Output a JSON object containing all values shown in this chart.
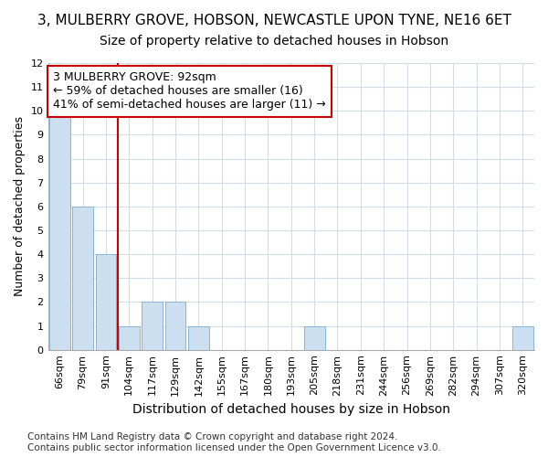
{
  "title": "3, MULBERRY GROVE, HOBSON, NEWCASTLE UPON TYNE, NE16 6ET",
  "subtitle": "Size of property relative to detached houses in Hobson",
  "xlabel": "Distribution of detached houses by size in Hobson",
  "ylabel": "Number of detached properties",
  "categories": [
    "66sqm",
    "79sqm",
    "91sqm",
    "104sqm",
    "117sqm",
    "129sqm",
    "142sqm",
    "155sqm",
    "167sqm",
    "180sqm",
    "193sqm",
    "205sqm",
    "218sqm",
    "231sqm",
    "244sqm",
    "256sqm",
    "269sqm",
    "282sqm",
    "294sqm",
    "307sqm",
    "320sqm"
  ],
  "values": [
    10,
    6,
    4,
    1,
    2,
    2,
    1,
    0,
    0,
    0,
    0,
    1,
    0,
    0,
    0,
    0,
    0,
    0,
    0,
    0,
    1
  ],
  "bar_color": "#ccdff0",
  "bar_edge_color": "#8ab4d4",
  "highlight_bar_index": 2,
  "highlight_line_color": "#cc0000",
  "ylim": [
    0,
    12
  ],
  "yticks": [
    0,
    1,
    2,
    3,
    4,
    5,
    6,
    7,
    8,
    9,
    10,
    11,
    12
  ],
  "annotation_text": "3 MULBERRY GROVE: 92sqm\n← 59% of detached houses are smaller (16)\n41% of semi-detached houses are larger (11) →",
  "annotation_box_color": "#ffffff",
  "annotation_box_edge": "#cc0000",
  "footer_line1": "Contains HM Land Registry data © Crown copyright and database right 2024.",
  "footer_line2": "Contains public sector information licensed under the Open Government Licence v3.0.",
  "background_color": "#ffffff",
  "plot_bg_color": "#ffffff",
  "grid_color": "#d0dce8",
  "title_fontsize": 11,
  "subtitle_fontsize": 10,
  "xlabel_fontsize": 10,
  "ylabel_fontsize": 9,
  "tick_fontsize": 8,
  "footer_fontsize": 7.5,
  "annotation_fontsize": 9
}
